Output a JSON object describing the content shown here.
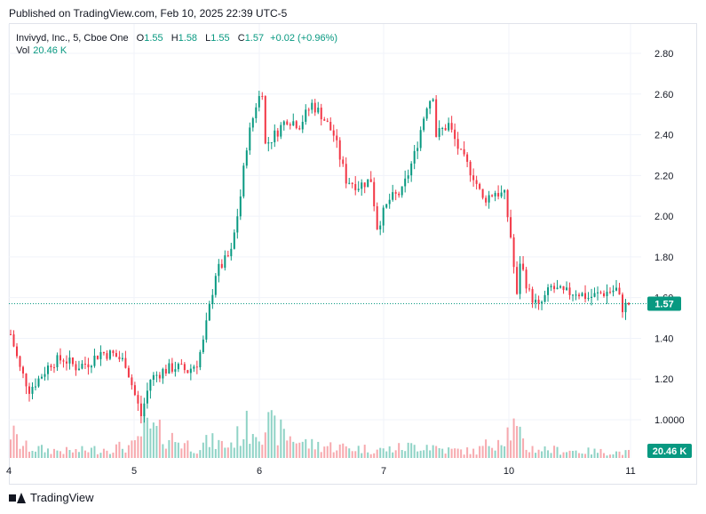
{
  "publish_line": "Published on TradingView.com, Feb 10, 2025 22:39 UTC-5",
  "legend": {
    "symbol": "Invivyd, Inc., 5, Cboe One",
    "open_label": "O",
    "open": "1.55",
    "high_label": "H",
    "high": "1.58",
    "low_label": "L",
    "low": "1.55",
    "close_label": "C",
    "close": "1.57",
    "change": "+0.02 (+0.96%)",
    "volume_label": "Vol",
    "volume": "20.46 K"
  },
  "footer_brand": "TradingView",
  "colors": {
    "up": "#089981",
    "down": "#f23645",
    "up_vol": "#8fd3c6",
    "down_vol": "#f7a9ae",
    "grid": "#f0f3fa",
    "badge": "#089981"
  },
  "chart_data": {
    "type": "candlestick",
    "ylim": [
      0.9,
      2.9
    ],
    "y_ticks": [
      "2.80",
      "2.60",
      "2.40",
      "2.20",
      "2.00",
      "1.80",
      "1.60",
      "1.40",
      "1.20",
      "1.0000"
    ],
    "x_ticks": [
      "4",
      "5",
      "6",
      "7",
      "10",
      "11"
    ],
    "last_price": "1.57",
    "last_volume": "20.46 K",
    "price_path": [
      [
        0,
        1.42
      ],
      [
        3,
        1.25
      ],
      [
        6,
        1.15
      ],
      [
        9,
        1.2
      ],
      [
        13,
        1.28
      ],
      [
        17,
        1.3
      ],
      [
        21,
        1.26
      ],
      [
        25,
        1.28
      ],
      [
        29,
        1.33
      ],
      [
        33,
        1.32
      ],
      [
        37,
        1.28
      ],
      [
        40,
        1.12
      ],
      [
        42,
        1.02
      ],
      [
        45,
        1.2
      ],
      [
        49,
        1.24
      ],
      [
        53,
        1.26
      ],
      [
        57,
        1.24
      ],
      [
        60,
        1.28
      ],
      [
        62,
        1.38
      ],
      [
        64,
        1.55
      ],
      [
        66,
        1.72
      ],
      [
        69,
        1.78
      ],
      [
        71,
        1.82
      ],
      [
        74,
        2.1
      ],
      [
        76,
        2.35
      ],
      [
        79,
        2.55
      ],
      [
        81,
        2.62
      ],
      [
        82,
        2.35
      ],
      [
        85,
        2.4
      ],
      [
        89,
        2.48
      ],
      [
        93,
        2.45
      ],
      [
        97,
        2.55
      ],
      [
        100,
        2.5
      ],
      [
        104,
        2.4
      ],
      [
        108,
        2.18
      ],
      [
        112,
        2.15
      ],
      [
        116,
        2.18
      ],
      [
        118,
        1.95
      ],
      [
        122,
        2.08
      ],
      [
        126,
        2.12
      ],
      [
        130,
        2.3
      ],
      [
        134,
        2.55
      ],
      [
        136,
        2.6
      ],
      [
        137,
        2.4
      ],
      [
        141,
        2.45
      ],
      [
        145,
        2.3
      ],
      [
        149,
        2.2
      ],
      [
        152,
        2.08
      ],
      [
        156,
        2.12
      ],
      [
        159,
        2.1
      ],
      [
        161,
        1.9
      ],
      [
        163,
        1.6
      ],
      [
        164,
        1.78
      ],
      [
        167,
        1.62
      ],
      [
        170,
        1.55
      ],
      [
        174,
        1.65
      ],
      [
        178,
        1.62
      ],
      [
        182,
        1.63
      ],
      [
        186,
        1.6
      ],
      [
        190,
        1.62
      ],
      [
        195,
        1.64
      ],
      [
        197,
        1.55
      ],
      [
        199,
        1.57
      ]
    ],
    "volume_path": [
      [
        0,
        40
      ],
      [
        3,
        20
      ],
      [
        6,
        15
      ],
      [
        12,
        12
      ],
      [
        20,
        10
      ],
      [
        40,
        18
      ],
      [
        43,
        45
      ],
      [
        60,
        15
      ],
      [
        64,
        25
      ],
      [
        70,
        18
      ],
      [
        76,
        45
      ],
      [
        82,
        50
      ],
      [
        88,
        35
      ],
      [
        96,
        20
      ],
      [
        110,
        15
      ],
      [
        120,
        12
      ],
      [
        134,
        20
      ],
      [
        140,
        12
      ],
      [
        150,
        10
      ],
      [
        162,
        45
      ],
      [
        166,
        15
      ],
      [
        175,
        12
      ],
      [
        185,
        10
      ],
      [
        199,
        8
      ]
    ]
  }
}
